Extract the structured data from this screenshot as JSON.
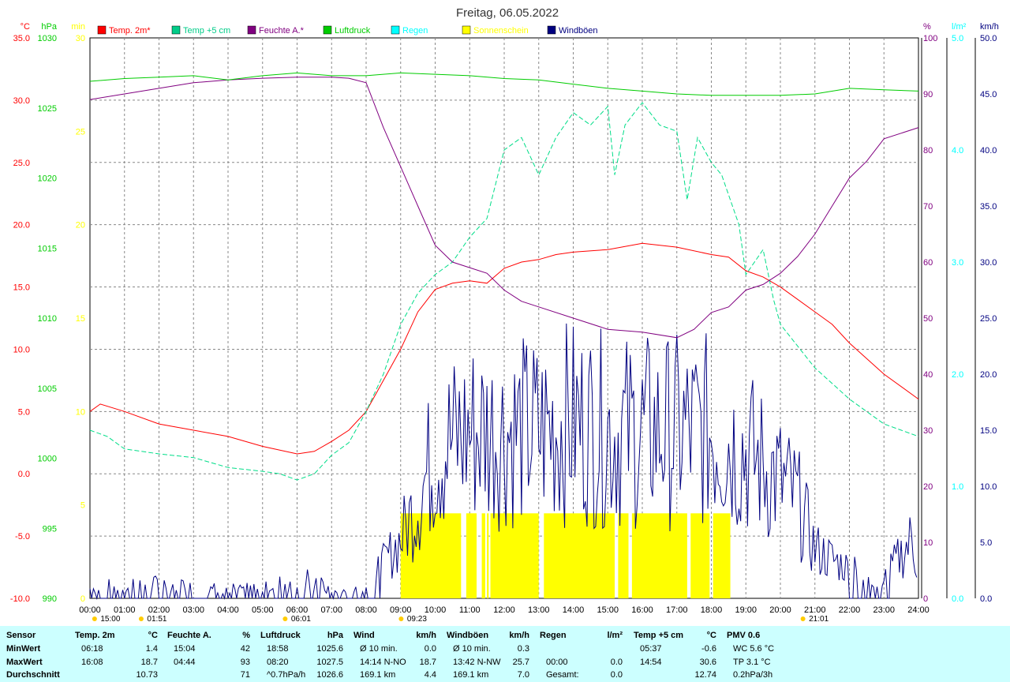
{
  "title": "Freitag, 06.05.2022",
  "axes": {
    "temp": {
      "unit": "°C",
      "color": "#ff0000",
      "ticks": [
        "35.0",
        "30.0",
        "25.0",
        "20.0",
        "15.0",
        "10.0",
        "5.0",
        "0.0",
        "-5.0",
        "-10.0"
      ]
    },
    "press": {
      "unit": "hPa",
      "color": "#00cc00",
      "ticks": [
        "1030",
        "1025",
        "1020",
        "1015",
        "1010",
        "1005",
        "1000",
        "995",
        "990"
      ]
    },
    "sun": {
      "unit": "min",
      "color": "#ffff00",
      "ticks": [
        "30",
        "25",
        "20",
        "15",
        "10",
        "5",
        "0"
      ]
    },
    "hum": {
      "unit": "%",
      "color": "#800080",
      "ticks": [
        "100",
        "90",
        "80",
        "70",
        "60",
        "50",
        "40",
        "30",
        "20",
        "10",
        "0"
      ]
    },
    "rain": {
      "unit": "l/m²",
      "color": "#00ffff",
      "ticks": [
        "5.0",
        "4.0",
        "3.0",
        "2.0",
        "1.0",
        "0.0"
      ]
    },
    "wind": {
      "unit": "km/h",
      "color": "#000080",
      "ticks": [
        "50.0",
        "45.0",
        "40.0",
        "35.0",
        "30.0",
        "25.0",
        "20.0",
        "15.0",
        "10.0",
        "5.0",
        "0.0"
      ]
    }
  },
  "legend": [
    {
      "label": "Temp. 2m*",
      "color": "#ff0000"
    },
    {
      "label": "Temp +5 cm",
      "color": "#00cc88"
    },
    {
      "label": "Feuchte A.*",
      "color": "#800080"
    },
    {
      "label": "Luftdruck",
      "color": "#00cc00"
    },
    {
      "label": "Regen",
      "color": "#00ffff"
    },
    {
      "label": "Sonnenschein",
      "color": "#ffff00"
    },
    {
      "label": "Windböen",
      "color": "#000080"
    }
  ],
  "x_ticks": [
    "00:00",
    "01:00",
    "02:00",
    "03:00",
    "04:00",
    "05:00",
    "06:00",
    "07:00",
    "08:00",
    "09:00",
    "10:00",
    "11:00",
    "12:00",
    "13:00",
    "14:00",
    "15:00",
    "16:00",
    "17:00",
    "18:00",
    "19:00",
    "20:00",
    "21:00",
    "22:00",
    "23:00",
    "24:00"
  ],
  "markers": [
    {
      "label": "15:00",
      "h": 0.5
    },
    {
      "label": "01:51",
      "h": 1.85
    },
    {
      "label": "06:01",
      "h": 6.02
    },
    {
      "label": "09:23",
      "h": 9.38
    },
    {
      "label": "21:01",
      "h": 21.02
    }
  ],
  "chart_data": {
    "type": "line",
    "title": "Freitag, 06.05.2022",
    "x_unit": "hour",
    "xlim": [
      0,
      24
    ],
    "series": [
      {
        "name": "Temp. 2m*",
        "axis": "temp",
        "ylim": [
          -10,
          35
        ],
        "points": [
          [
            0,
            5
          ],
          [
            0.3,
            5.6
          ],
          [
            1,
            5
          ],
          [
            2,
            4
          ],
          [
            3,
            3.5
          ],
          [
            4,
            3
          ],
          [
            5,
            2.2
          ],
          [
            6,
            1.6
          ],
          [
            6.5,
            1.8
          ],
          [
            7,
            2.6
          ],
          [
            7.5,
            3.5
          ],
          [
            8,
            5
          ],
          [
            8.5,
            7.5
          ],
          [
            9,
            10
          ],
          [
            9.5,
            13
          ],
          [
            10,
            14.8
          ],
          [
            10.5,
            15.3
          ],
          [
            11,
            15.5
          ],
          [
            11.5,
            15.3
          ],
          [
            12,
            16.5
          ],
          [
            12.5,
            17
          ],
          [
            13,
            17.2
          ],
          [
            13.5,
            17.6
          ],
          [
            14,
            17.8
          ],
          [
            15,
            18
          ],
          [
            16,
            18.5
          ],
          [
            17,
            18.2
          ],
          [
            18,
            17.6
          ],
          [
            18.5,
            17.4
          ],
          [
            19,
            16.3
          ],
          [
            19.5,
            15.8
          ],
          [
            20,
            15
          ],
          [
            20.5,
            14
          ],
          [
            21,
            13
          ],
          [
            21.5,
            12
          ],
          [
            22,
            10.5
          ],
          [
            23,
            8
          ],
          [
            24,
            6
          ]
        ]
      },
      {
        "name": "Temp +5 cm",
        "axis": "temp",
        "ylim": [
          -10,
          35
        ],
        "points": [
          [
            0,
            3.5
          ],
          [
            0.5,
            3
          ],
          [
            1,
            2
          ],
          [
            2,
            1.6
          ],
          [
            3,
            1.3
          ],
          [
            4,
            0.5
          ],
          [
            5,
            0.2
          ],
          [
            5.5,
            0
          ],
          [
            6,
            -0.5
          ],
          [
            6.5,
            0
          ],
          [
            7,
            1.5
          ],
          [
            7.5,
            2.5
          ],
          [
            8,
            5
          ],
          [
            8.5,
            8
          ],
          [
            9,
            12
          ],
          [
            9.5,
            14.5
          ],
          [
            10,
            16
          ],
          [
            10.5,
            17
          ],
          [
            11,
            19
          ],
          [
            11.5,
            20.5
          ],
          [
            12,
            26
          ],
          [
            12.5,
            27
          ],
          [
            13,
            24
          ],
          [
            13.5,
            27
          ],
          [
            14,
            29
          ],
          [
            14.5,
            28
          ],
          [
            15,
            29.5
          ],
          [
            15.2,
            24
          ],
          [
            15.5,
            28
          ],
          [
            16,
            29.8
          ],
          [
            16.5,
            28
          ],
          [
            17,
            27.5
          ],
          [
            17.3,
            22
          ],
          [
            17.6,
            27
          ],
          [
            18,
            25
          ],
          [
            18.3,
            24
          ],
          [
            18.8,
            20
          ],
          [
            19,
            16
          ],
          [
            19.5,
            18
          ],
          [
            19.8,
            14
          ],
          [
            20,
            12
          ],
          [
            21,
            8.5
          ],
          [
            22,
            6
          ],
          [
            23,
            4
          ],
          [
            24,
            3
          ]
        ]
      },
      {
        "name": "Feuchte A.*",
        "axis": "hum",
        "ylim": [
          0,
          100
        ],
        "points": [
          [
            0,
            89
          ],
          [
            1,
            90
          ],
          [
            2,
            91
          ],
          [
            3,
            92
          ],
          [
            4,
            92.5
          ],
          [
            5,
            92.8
          ],
          [
            6,
            93
          ],
          [
            7,
            93
          ],
          [
            7.5,
            92.8
          ],
          [
            8,
            92
          ],
          [
            8.5,
            84
          ],
          [
            9,
            77
          ],
          [
            9.5,
            70
          ],
          [
            10,
            63
          ],
          [
            10.5,
            60
          ],
          [
            11,
            59
          ],
          [
            11.5,
            58
          ],
          [
            12,
            55
          ],
          [
            12.5,
            53
          ],
          [
            13,
            52
          ],
          [
            14,
            50
          ],
          [
            15,
            48
          ],
          [
            16,
            47.5
          ],
          [
            17,
            46.5
          ],
          [
            17.5,
            48
          ],
          [
            18,
            51
          ],
          [
            18.5,
            52
          ],
          [
            19,
            55
          ],
          [
            19.5,
            56
          ],
          [
            20,
            58
          ],
          [
            20.5,
            61
          ],
          [
            21,
            65
          ],
          [
            21.5,
            70
          ],
          [
            22,
            75
          ],
          [
            22.5,
            78
          ],
          [
            23,
            82
          ],
          [
            24,
            84
          ]
        ]
      },
      {
        "name": "Luftdruck",
        "axis": "press",
        "ylim": [
          990,
          1030
        ],
        "points": [
          [
            0,
            1026.9
          ],
          [
            1,
            1027.1
          ],
          [
            2,
            1027.2
          ],
          [
            3,
            1027.3
          ],
          [
            4,
            1027.0
          ],
          [
            5,
            1027.3
          ],
          [
            6,
            1027.5
          ],
          [
            7,
            1027.3
          ],
          [
            8,
            1027.3
          ],
          [
            9,
            1027.5
          ],
          [
            10,
            1027.4
          ],
          [
            11,
            1027.3
          ],
          [
            12,
            1027.1
          ],
          [
            13,
            1027
          ],
          [
            14,
            1026.7
          ],
          [
            15,
            1026.4
          ],
          [
            16,
            1026.2
          ],
          [
            17,
            1026.0
          ],
          [
            18,
            1025.9
          ],
          [
            19,
            1025.9
          ],
          [
            20,
            1025.9
          ],
          [
            21,
            1026.0
          ],
          [
            22,
            1026.4
          ],
          [
            23,
            1026.3
          ],
          [
            24,
            1026.2
          ]
        ]
      }
    ],
    "sunshine": {
      "name": "Sonnenschein",
      "axis": "sun",
      "value_min": 3.5,
      "blocks": [
        [
          9.0,
          10.75
        ],
        [
          10.9,
          11.2
        ],
        [
          11.35,
          11.45
        ],
        [
          11.5,
          11.55
        ],
        [
          11.6,
          13
        ],
        [
          13.15,
          15.2
        ],
        [
          15.3,
          15.6
        ],
        [
          15.7,
          17.3
        ],
        [
          17.4,
          17.95
        ],
        [
          18.05,
          18.55
        ]
      ]
    },
    "wind": {
      "name": "Windböen",
      "axis": "wind",
      "ylim": [
        0,
        50
      ],
      "envelope": [
        [
          0,
          1
        ],
        [
          1,
          1.5
        ],
        [
          2,
          1.5
        ],
        [
          3,
          1.5
        ],
        [
          4,
          1
        ],
        [
          5,
          1
        ],
        [
          6,
          2
        ],
        [
          6.5,
          2
        ],
        [
          7,
          0.5
        ],
        [
          8,
          1
        ],
        [
          9,
          6
        ],
        [
          9.5,
          10
        ],
        [
          10,
          15
        ],
        [
          11,
          17
        ],
        [
          12,
          17
        ],
        [
          13,
          17
        ],
        [
          14,
          18
        ],
        [
          15,
          17
        ],
        [
          16,
          17
        ],
        [
          17,
          17
        ],
        [
          18,
          17
        ],
        [
          19,
          15
        ],
        [
          20,
          12
        ],
        [
          20.5,
          10
        ],
        [
          21,
          5
        ],
        [
          22,
          3
        ],
        [
          23,
          2
        ],
        [
          23.8,
          6
        ],
        [
          24,
          3
        ]
      ]
    }
  },
  "table": {
    "headers": [
      {
        "label": "Sensor",
        "unit": ""
      },
      {
        "label": "Temp. 2m",
        "unit": "°C"
      },
      {
        "label": "Feuchte A.",
        "unit": "%"
      },
      {
        "label": "Luftdruck",
        "unit": "hPa"
      },
      {
        "label": "Wind",
        "unit": "km/h"
      },
      {
        "label": "Windböen",
        "unit": "km/h"
      },
      {
        "label": "Regen",
        "unit": "l/m²"
      },
      {
        "label": "Temp +5 cm",
        "unit": "°C"
      },
      {
        "label": "PMV 0.6",
        "unit": ""
      }
    ],
    "rows": [
      {
        "label": "MinWert",
        "cells": [
          [
            "06:18",
            "1.4"
          ],
          [
            "15:04",
            "42"
          ],
          [
            "18:58",
            "1025.6"
          ],
          [
            "Ø 10 min.",
            "0.0"
          ],
          [
            "Ø 10 min.",
            "0.3"
          ],
          [
            "",
            ""
          ],
          [
            "05:37",
            "-0.6"
          ],
          [
            "WC 5.6 °C",
            ""
          ]
        ]
      },
      {
        "label": "MaxWert",
        "cells": [
          [
            "16:08",
            "18.7"
          ],
          [
            "04:44",
            "93"
          ],
          [
            "08:20",
            "1027.5"
          ],
          [
            "14:14   N-NO",
            "18.7"
          ],
          [
            "13:42   N-NW",
            "25.7"
          ],
          [
            "00:00",
            "0.0"
          ],
          [
            "14:54",
            "30.6"
          ],
          [
            "TP 3.1 °C",
            ""
          ]
        ]
      },
      {
        "label": "Durchschnitt",
        "cells": [
          [
            "",
            "10.73"
          ],
          [
            "",
            "71"
          ],
          [
            "^0.7hPa/h",
            "1026.6"
          ],
          [
            "169.1 km",
            "4.4"
          ],
          [
            "169.1 km",
            "7.0"
          ],
          [
            "Gesamt:",
            "0.0"
          ],
          [
            "",
            "12.74"
          ],
          [
            "0.2hPa/3h",
            ""
          ]
        ]
      }
    ]
  }
}
